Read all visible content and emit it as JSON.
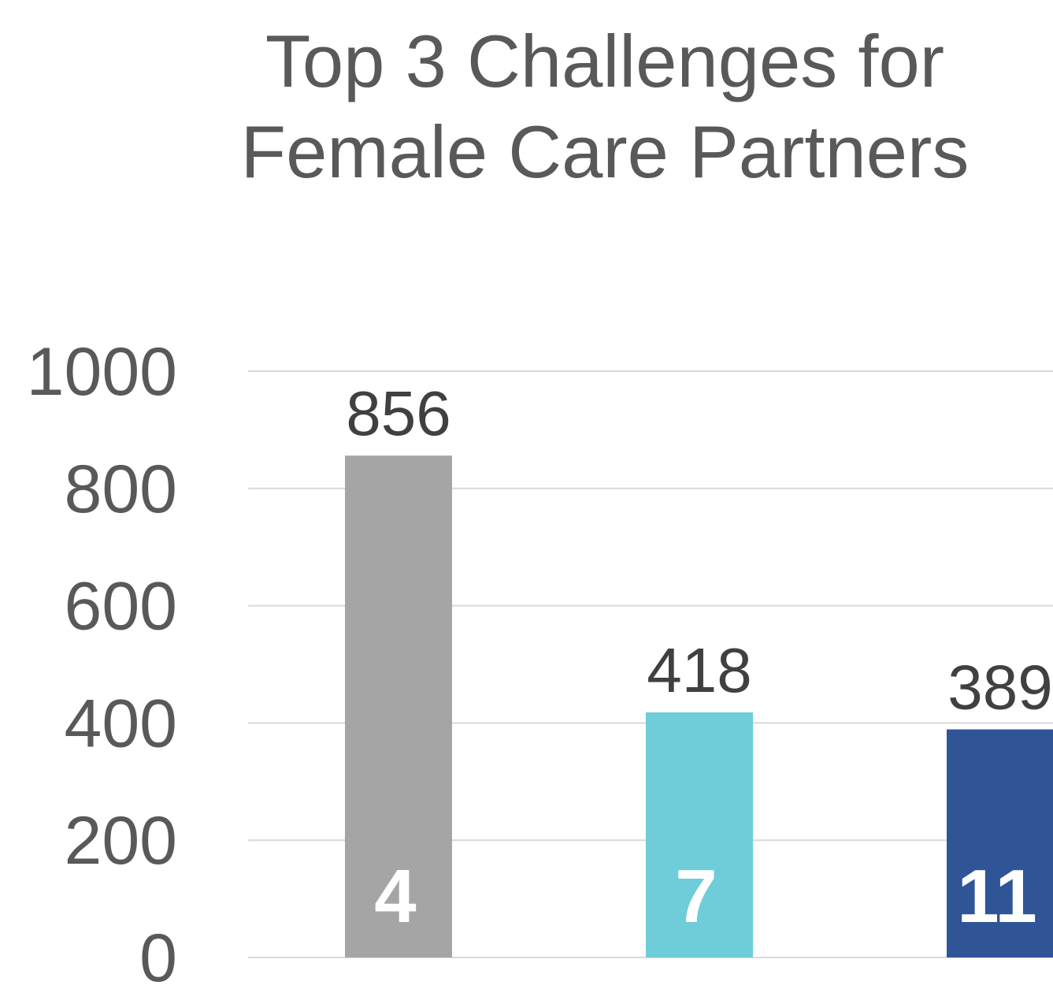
{
  "chart_data": {
    "type": "bar",
    "title": [
      "Top 3 Challenges for",
      "Female Care Partners"
    ],
    "categories": [
      "4",
      "7",
      "11"
    ],
    "values": [
      856,
      418,
      389
    ],
    "colors": [
      "#a5a5a5",
      "#6ecdd8",
      "#2f5597"
    ],
    "ylim": [
      0,
      1000
    ],
    "yticks": [
      0,
      200,
      400,
      600,
      800,
      1000
    ],
    "grid": true
  }
}
